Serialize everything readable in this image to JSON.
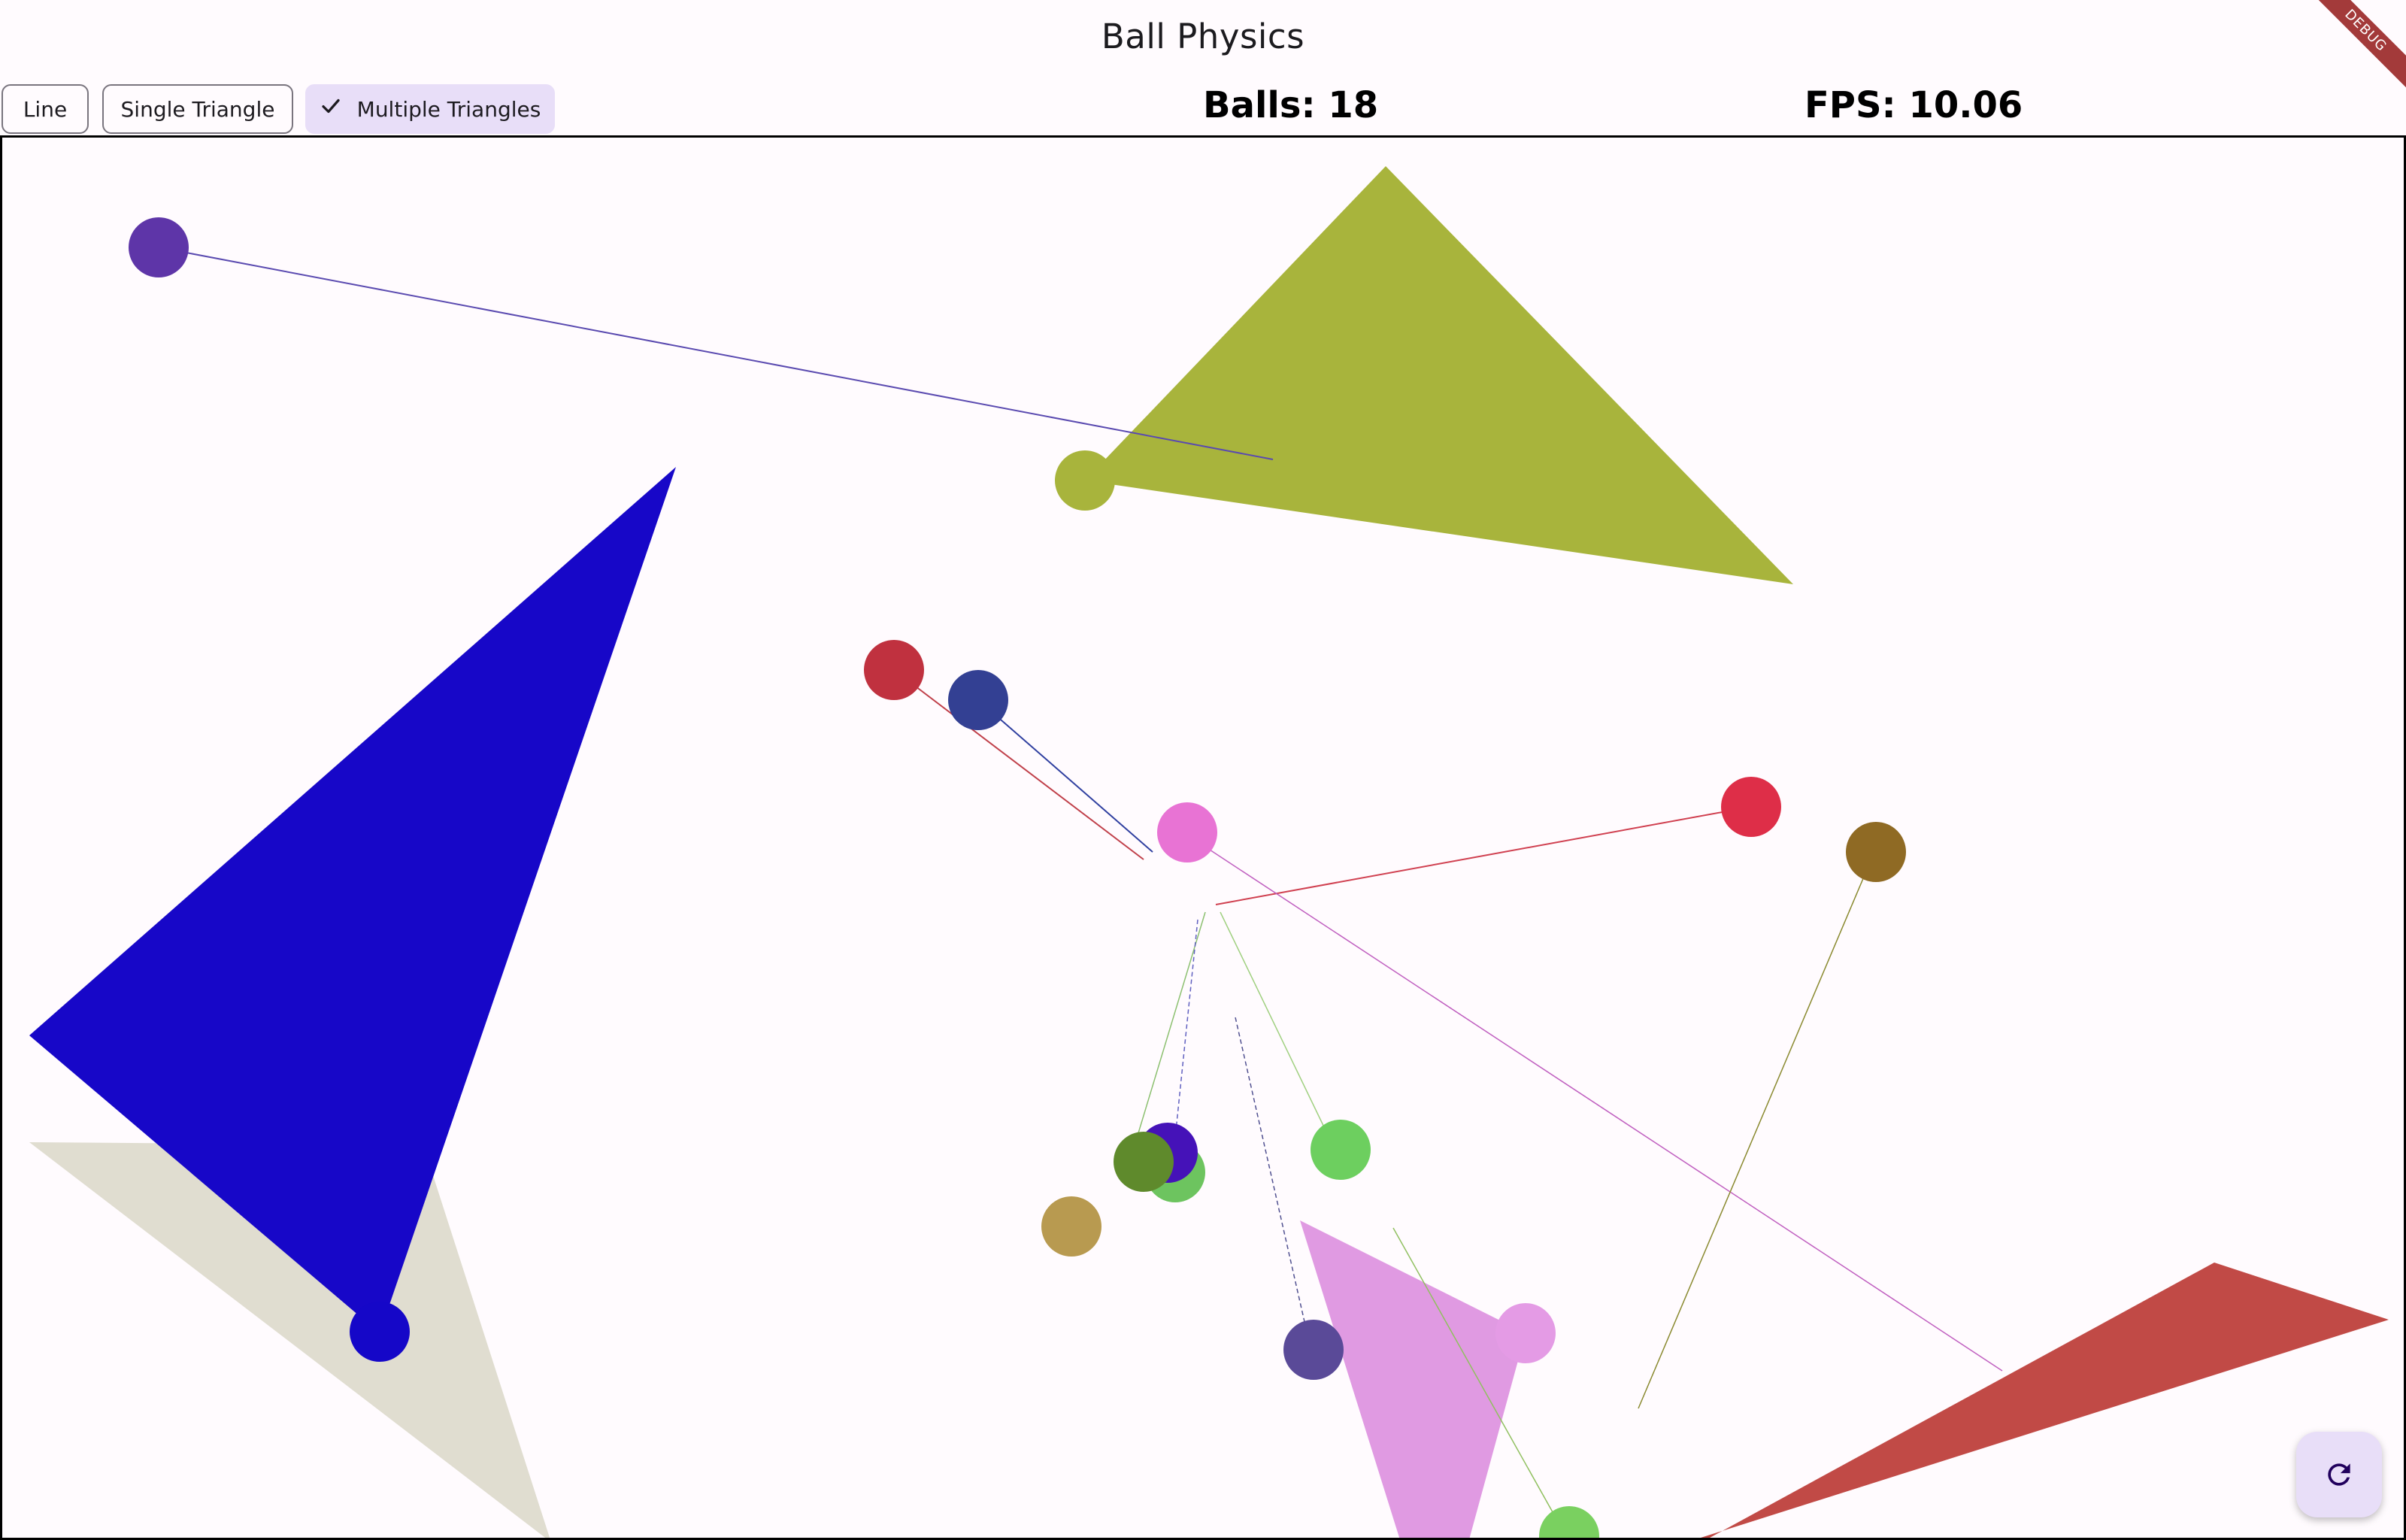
{
  "app": {
    "title": "Ball Physics",
    "debug_banner": "DEBUG"
  },
  "modes": {
    "line_label": "Line",
    "single_label": "Single Triangle",
    "multiple_label": "Multiple Triangles",
    "selected": "Multiple Triangles",
    "check_icon": "check-icon"
  },
  "stats": {
    "balls": "Balls: 18",
    "fps": "FPS: 10.06"
  },
  "fab": {
    "icon": "refresh-icon",
    "color": "#e8def8"
  },
  "colors": {
    "background": "#fffbfe",
    "accent": "#e8def8"
  }
}
